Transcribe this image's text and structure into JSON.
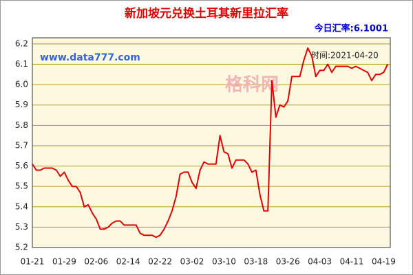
{
  "chart_data": {
    "type": "line",
    "title": "新加坡元兑换土耳其新里拉汇率",
    "annotations": {
      "current": "今日汇率:6.1001",
      "site": "www.data777.com",
      "time": "时间:2021-04-20",
      "watermark": "格科网"
    },
    "categories": [
      "01-21",
      null,
      null,
      null,
      null,
      null,
      null,
      null,
      "01-29",
      null,
      null,
      null,
      null,
      null,
      null,
      null,
      "02-06",
      null,
      null,
      null,
      null,
      null,
      null,
      null,
      "02-14",
      null,
      null,
      null,
      null,
      null,
      null,
      null,
      "02-22",
      null,
      null,
      null,
      null,
      null,
      null,
      null,
      "03-02",
      null,
      null,
      null,
      null,
      null,
      null,
      null,
      "03-10",
      null,
      null,
      null,
      null,
      null,
      null,
      null,
      "03-18",
      null,
      null,
      null,
      null,
      null,
      null,
      null,
      "03-26",
      null,
      null,
      null,
      null,
      null,
      null,
      null,
      "04-03",
      null,
      null,
      null,
      null,
      null,
      null,
      null,
      "04-11",
      null,
      null,
      null,
      null,
      null,
      null,
      null,
      "04-19",
      null
    ],
    "series": [
      {
        "color": "#e00000",
        "values": [
          5.61,
          5.58,
          5.58,
          5.59,
          5.59,
          5.59,
          5.58,
          5.55,
          5.57,
          5.53,
          5.5,
          5.5,
          5.47,
          5.4,
          5.41,
          5.37,
          5.34,
          5.29,
          5.29,
          5.3,
          5.32,
          5.33,
          5.33,
          5.31,
          5.31,
          5.31,
          5.31,
          5.27,
          5.26,
          5.26,
          5.26,
          5.25,
          5.26,
          5.29,
          5.33,
          5.38,
          5.45,
          5.56,
          5.57,
          5.57,
          5.52,
          5.49,
          5.58,
          5.62,
          5.61,
          5.61,
          5.61,
          5.75,
          5.67,
          5.66,
          5.59,
          5.63,
          5.63,
          5.63,
          5.61,
          5.57,
          5.58,
          5.46,
          5.38,
          5.38,
          6.02,
          5.84,
          5.9,
          5.89,
          5.92,
          6.04,
          6.04,
          6.04,
          6.12,
          6.18,
          6.14,
          6.04,
          6.07,
          6.07,
          6.1,
          6.06,
          6.09,
          6.09,
          6.09,
          6.09,
          6.08,
          6.09,
          6.08,
          6.07,
          6.06,
          6.02,
          6.05,
          6.05,
          6.06,
          6.1001
        ]
      }
    ],
    "ylim": [
      5.2,
      6.23
    ],
    "yticks": [
      5.2,
      5.3,
      5.4,
      5.5,
      5.6,
      5.7,
      5.8,
      5.9,
      {
        "value": 6,
        "label": "6.0"
      },
      6.1,
      6.2
    ],
    "grid": true
  }
}
